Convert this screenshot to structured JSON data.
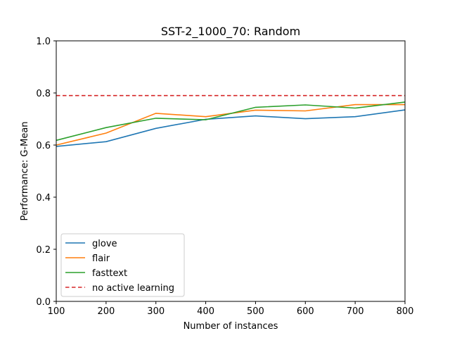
{
  "chart_data": {
    "type": "line",
    "title": "SST-2_1000_70: Random",
    "xlabel": "Number of instances",
    "ylabel": "Performance: G-Mean",
    "xlim": [
      100,
      800
    ],
    "ylim": [
      0.0,
      1.0
    ],
    "xticks": [
      "100",
      "200",
      "300",
      "400",
      "500",
      "600",
      "700",
      "800"
    ],
    "yticks": [
      "0.0",
      "0.2",
      "0.4",
      "0.6",
      "0.8",
      "1.0"
    ],
    "grid": false,
    "legend_position": "lower-left",
    "x": [
      100,
      200,
      300,
      400,
      500,
      600,
      700,
      800
    ],
    "series": [
      {
        "name": "glove",
        "color": "#1f77b4",
        "style": "solid",
        "values": [
          0.595,
          0.613,
          0.664,
          0.699,
          0.712,
          0.701,
          0.709,
          0.735
        ]
      },
      {
        "name": "flair",
        "color": "#ff7f0e",
        "style": "solid",
        "values": [
          0.6,
          0.646,
          0.722,
          0.709,
          0.734,
          0.731,
          0.755,
          0.755
        ]
      },
      {
        "name": "fasttext",
        "color": "#2ca02c",
        "style": "solid",
        "values": [
          0.618,
          0.667,
          0.703,
          0.697,
          0.745,
          0.754,
          0.742,
          0.765
        ]
      },
      {
        "name": "no active learning",
        "color": "#d62728",
        "style": "dashed",
        "values": [
          0.79,
          0.79,
          0.79,
          0.79,
          0.79,
          0.79,
          0.79,
          0.79
        ]
      }
    ]
  }
}
